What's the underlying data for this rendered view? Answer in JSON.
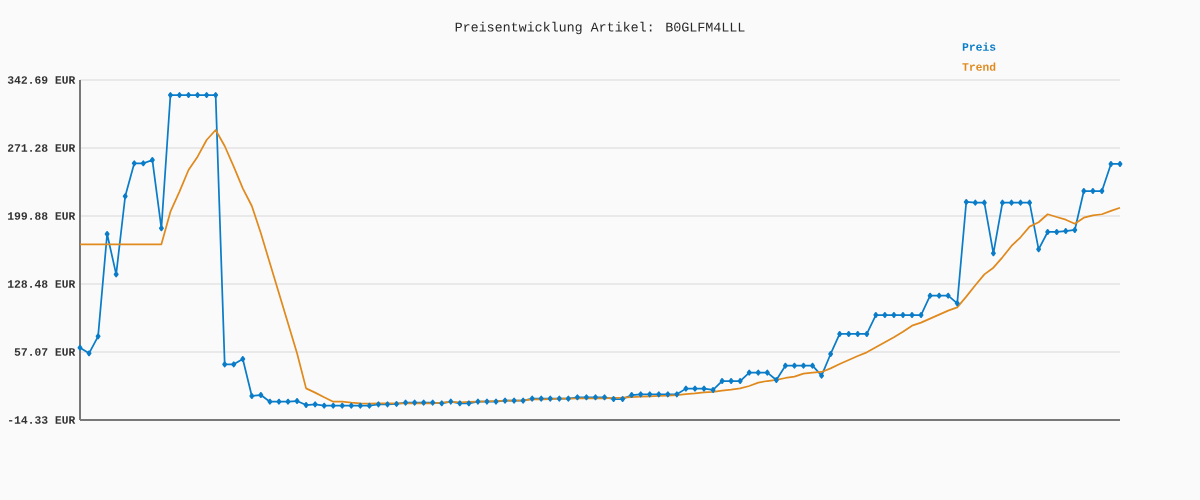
{
  "chart_data": {
    "type": "line",
    "title": "Preisentwicklung Artikel: B0GLFM4LLL",
    "categories": [
      null,
      null,
      null,
      null,
      null,
      null,
      null,
      null,
      null,
      null,
      null,
      null,
      null,
      null,
      null,
      null,
      null,
      null,
      null,
      null,
      null,
      null,
      null,
      null,
      null,
      null,
      null,
      null,
      null,
      null,
      null,
      null,
      null,
      null,
      null,
      null,
      null,
      null,
      null,
      null,
      null,
      null,
      null,
      null,
      null,
      null,
      null,
      null,
      null,
      null,
      null,
      null,
      null,
      null,
      null,
      null,
      null,
      null,
      null,
      null,
      null,
      null,
      null,
      null,
      null,
      null,
      null,
      null,
      null,
      null,
      null,
      null,
      null,
      null,
      null,
      null,
      null,
      null,
      null,
      null,
      null,
      null,
      null,
      null,
      null,
      null,
      null,
      null,
      null,
      null,
      null,
      null,
      null,
      null,
      null,
      null,
      null,
      null,
      null,
      null,
      null,
      null,
      null,
      null,
      null,
      null,
      null,
      null,
      null,
      null,
      null,
      null,
      null,
      null,
      null,
      null
    ],
    "series": [
      {
        "name": "Preis",
        "color": "#0a7cc8",
        "marker": "diamond",
        "values": [
          61.6,
          55.7,
          73.5,
          181,
          138.6,
          220.6,
          255.2,
          255.2,
          258.7,
          187,
          326.9,
          326.9,
          326.9,
          326.9,
          326.9,
          326.9,
          44.1,
          44.1,
          49.7,
          10.9,
          11.9,
          4.9,
          4.9,
          4.9,
          5.6,
          1.4,
          2.1,
          0.7,
          0.7,
          0.7,
          0.7,
          0.7,
          0.7,
          2.1,
          2.1,
          2.5,
          3.9,
          3.9,
          3.9,
          3.9,
          3.2,
          5.0,
          3.2,
          3.2,
          5.0,
          5.0,
          5.0,
          6.0,
          6.0,
          6.0,
          8.1,
          8.1,
          8.1,
          8.1,
          8.1,
          9.5,
          9.5,
          9.5,
          9.5,
          7.7,
          7.7,
          11.9,
          12.6,
          12.6,
          12.6,
          12.6,
          12.6,
          18.6,
          18.6,
          18.6,
          17.2,
          26.6,
          26.6,
          26.6,
          35.4,
          35.4,
          35.4,
          27.7,
          42.7,
          42.7,
          42.7,
          42.7,
          32.2,
          55.0,
          76.0,
          76.0,
          76.0,
          76.0,
          95.9,
          95.9,
          95.9,
          95.9,
          95.9,
          95.9,
          116.2,
          116.2,
          116.2,
          108.2,
          214.6,
          213.9,
          213.9,
          160.7,
          213.9,
          213.9,
          213.9,
          213.9,
          164.9,
          183.1,
          183.1,
          184.1,
          185.2,
          226.1,
          226.1,
          226.1,
          254.5,
          254.5
        ]
      },
      {
        "name": "Trend",
        "color": "#e08a1e",
        "marker": "none",
        "values": [
          170.2,
          170.2,
          170.2,
          170.2,
          170.2,
          170.2,
          170.2,
          170.2,
          170.2,
          170.2,
          204.4,
          225.4,
          248.2,
          262.2,
          279.7,
          290.2,
          273.4,
          251.7,
          228.9,
          210.4,
          181.7,
          150.2,
          118.7,
          87.2,
          55.7,
          18.9,
          14.4,
          9.5,
          4.9,
          4.9,
          3.9,
          3.2,
          2.8,
          3.2,
          3.2,
          3.2,
          3.2,
          3.2,
          3.2,
          3.2,
          3.9,
          4.6,
          4.2,
          4.6,
          5.0,
          5.3,
          5.6,
          6.0,
          6.0,
          6.3,
          7.4,
          7.4,
          7.7,
          8.1,
          8.1,
          8.4,
          8.4,
          8.4,
          8.4,
          8.8,
          9.1,
          9.8,
          10.2,
          10.5,
          10.9,
          11.2,
          11.9,
          12.9,
          13.6,
          14.7,
          15.1,
          16.5,
          17.5,
          18.9,
          21.4,
          24.9,
          26.6,
          27.7,
          29.8,
          31.2,
          34.3,
          35.4,
          36.1,
          39.9,
          44.4,
          48.7,
          52.9,
          56.7,
          62.0,
          67.3,
          72.5,
          78.4,
          84.7,
          87.9,
          92.1,
          96.3,
          100.5,
          103.9,
          115.2,
          127.1,
          138.6,
          145.6,
          156.5,
          168.4,
          177.5,
          188.7,
          193.3,
          201.7,
          198.8,
          196.0,
          191.8,
          198.1,
          200.6,
          201.7,
          205.2,
          208.6
        ]
      }
    ],
    "ylim": [
      -14.33,
      342.69
    ],
    "yticks": [
      {
        "value": -14.33,
        "label": "-14.33 EUR"
      },
      {
        "value": 57.07,
        "label": "57.07 EUR"
      },
      {
        "value": 128.48,
        "label": "128.48 EUR"
      },
      {
        "value": 199.88,
        "label": "199.88 EUR"
      },
      {
        "value": 271.28,
        "label": "271.28 EUR"
      },
      {
        "value": 342.69,
        "label": "342.69 EUR"
      }
    ],
    "grid": "y",
    "legend": "top right",
    "line_style": "solid"
  }
}
